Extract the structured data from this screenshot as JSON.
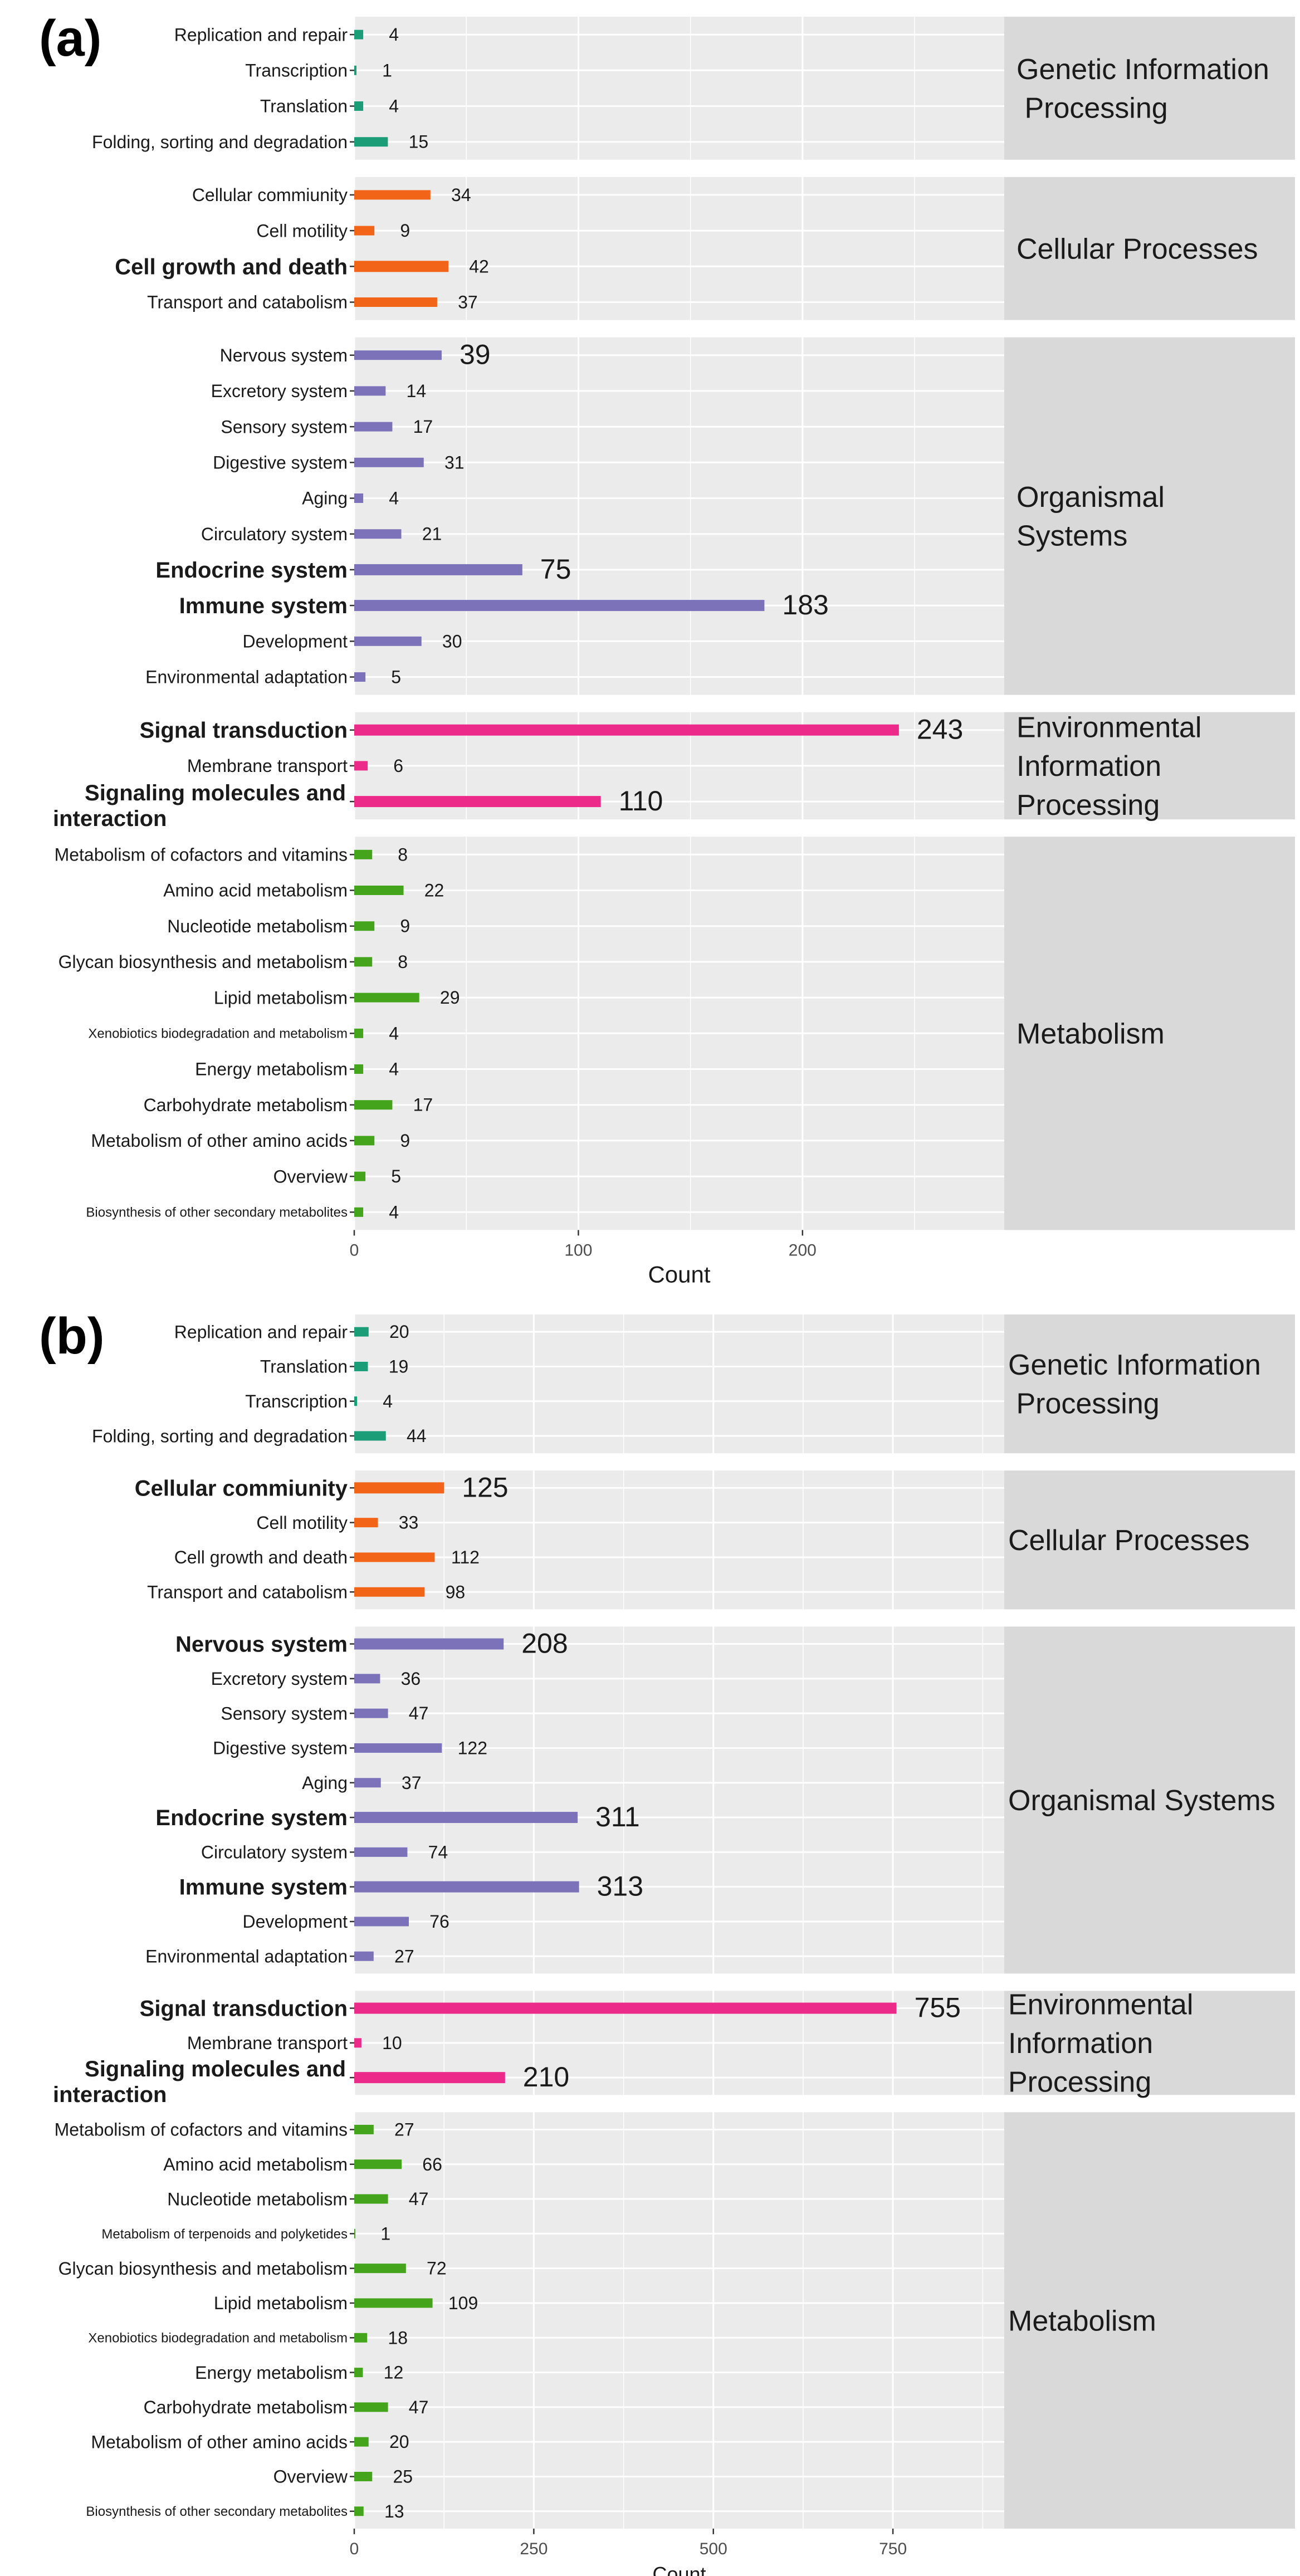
{
  "chart_data": [
    {
      "type": "bar",
      "orientation": "horizontal",
      "panel_label": "(a)",
      "xlabel": "Count",
      "xlim": [
        0,
        290
      ],
      "xticks": [
        0,
        100,
        200
      ],
      "grid": true,
      "colors": {
        "Genetic Information Processing": "#1b9e77",
        "Cellular Processes": "#f26418",
        "Organismal Systems": "#7b72b9",
        "Environmental Information Processing": "#ec2a8a",
        "Metabolism": "#44a51c"
      },
      "groups": [
        {
          "name_lines": [
            "Genetic Information",
            " Processing"
          ],
          "categories": [
            "Replication and repair",
            "Transcription",
            "Translation",
            "Folding, sorting and degradation"
          ],
          "values": [
            4,
            1,
            4,
            15
          ],
          "bold": [
            false,
            false,
            false,
            false
          ]
        },
        {
          "name_lines": [
            "Cellular Processes"
          ],
          "categories": [
            "Cellular commiunity",
            "Cell motility",
            "Cell growth and death",
            "Transport and catabolism"
          ],
          "values": [
            34,
            9,
            42,
            37
          ],
          "bold": [
            false,
            false,
            true,
            false
          ]
        },
        {
          "name_lines": [
            "Organismal",
            "Systems"
          ],
          "categories": [
            "Nervous system",
            "Excretory system",
            "Sensory system",
            "Digestive system",
            "Aging",
            "Circulatory system",
            "Endocrine system",
            "Immune system",
            "Development",
            "Environmental adaptation"
          ],
          "values": [
            39,
            14,
            17,
            31,
            4,
            21,
            75,
            183,
            30,
            5
          ],
          "bold": [
            false,
            false,
            false,
            false,
            false,
            false,
            true,
            true,
            false,
            false
          ],
          "big_values": [
            true,
            false,
            false,
            false,
            false,
            false,
            true,
            true,
            false,
            false
          ]
        },
        {
          "name_lines": [
            "Environmental",
            "Information",
            "Processing"
          ],
          "categories": [
            "Signal transduction",
            "Membrane transport",
            "Signaling molecules and interaction"
          ],
          "values": [
            243,
            6,
            110
          ],
          "bold": [
            true,
            false,
            true
          ],
          "big_values": [
            true,
            false,
            true
          ]
        },
        {
          "name_lines": [
            "Metabolism"
          ],
          "categories": [
            "Metabolism of cofactors and vitamins",
            "Amino acid metabolism",
            "Nucleotide metabolism",
            "Glycan biosynthesis and metabolism",
            "Lipid metabolism",
            "Xenobiotics biodegradation and metabolism",
            "Energy metabolism",
            "Carbohydrate metabolism",
            "Metabolism of other amino acids",
            "Overview",
            "Biosynthesis of other secondary metabolites"
          ],
          "values": [
            8,
            22,
            9,
            8,
            29,
            4,
            4,
            17,
            9,
            5,
            4
          ],
          "bold": [
            false,
            false,
            false,
            false,
            false,
            false,
            false,
            false,
            false,
            false,
            false
          ]
        }
      ]
    },
    {
      "type": "bar",
      "orientation": "horizontal",
      "panel_label": "(b)",
      "xlabel": "Count",
      "xlim": [
        0,
        905
      ],
      "xticks": [
        0,
        250,
        500,
        750
      ],
      "grid": true,
      "colors": {
        "Genetic Information Processing": "#1b9e77",
        "Cellular Processes": "#f26418",
        "Organismal Systems": "#7b72b9",
        "Environmental Information Processing": "#ec2a8a",
        "Metabolism": "#44a51c"
      },
      "groups": [
        {
          "name_lines": [
            "Genetic Information",
            " Processing"
          ],
          "categories": [
            "Replication and repair",
            "Translation",
            "Transcription",
            "Folding, sorting and degradation"
          ],
          "values": [
            20,
            19,
            4,
            44
          ],
          "bold": [
            false,
            false,
            false,
            false
          ]
        },
        {
          "name_lines": [
            "Cellular Processes"
          ],
          "categories": [
            "Cellular commiunity",
            "Cell motility",
            "Cell growth and death",
            "Transport and catabolism"
          ],
          "values": [
            125,
            33,
            112,
            98
          ],
          "bold": [
            true,
            false,
            false,
            false
          ],
          "big_values": [
            true,
            false,
            false,
            false
          ]
        },
        {
          "name_lines": [
            "Organismal Systems"
          ],
          "categories": [
            "Nervous system",
            "Excretory system",
            "Sensory system",
            "Digestive system",
            "Aging",
            "Endocrine system",
            "Circulatory system",
            "Immune system",
            "Development",
            "Environmental adaptation"
          ],
          "values": [
            208,
            36,
            47,
            122,
            37,
            311,
            74,
            313,
            76,
            27
          ],
          "bold": [
            true,
            false,
            false,
            false,
            false,
            true,
            false,
            true,
            false,
            false
          ],
          "big_values": [
            true,
            false,
            false,
            false,
            false,
            true,
            false,
            true,
            false,
            false
          ]
        },
        {
          "name_lines": [
            "Environmental",
            "Information",
            "Processing"
          ],
          "categories": [
            "Signal transduction",
            "Membrane transport",
            "Signaling molecules and interaction"
          ],
          "values": [
            755,
            10,
            210
          ],
          "bold": [
            true,
            false,
            true
          ],
          "big_values": [
            true,
            false,
            true
          ]
        },
        {
          "name_lines": [
            "Metabolism"
          ],
          "categories": [
            "Metabolism of cofactors and vitamins",
            "Amino acid metabolism",
            "Nucleotide metabolism",
            "Metabolism of terpenoids and polyketides",
            "Glycan biosynthesis and metabolism",
            "Lipid metabolism",
            "Xenobiotics biodegradation and metabolism",
            "Energy metabolism",
            "Carbohydrate metabolism",
            "Metabolism of other amino acids",
            "Overview",
            "Biosynthesis of other secondary metabolites"
          ],
          "values": [
            27,
            66,
            47,
            1,
            72,
            109,
            18,
            12,
            47,
            20,
            25,
            13
          ],
          "bold": [
            false,
            false,
            false,
            false,
            false,
            false,
            false,
            false,
            false,
            false,
            false,
            false
          ]
        }
      ]
    }
  ]
}
